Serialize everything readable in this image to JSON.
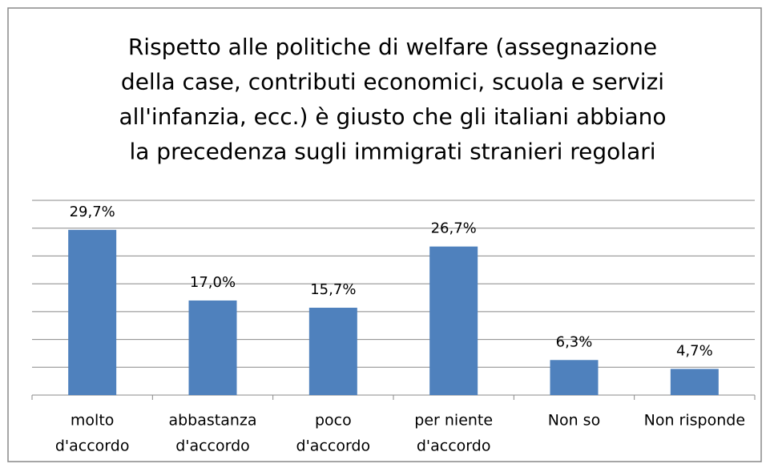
{
  "chart_data": {
    "type": "bar",
    "title": [
      "Rispetto alle politiche di welfare (assegnazione",
      "della case, contributi economici, scuola e servizi",
      "all'infanzia, ecc.) è giusto che gli italiani abbiano",
      "la precedenza sugli immigrati stranieri regolari"
    ],
    "categories": [
      [
        "molto",
        "d'accordo"
      ],
      [
        "abbastanza",
        "d'accordo"
      ],
      [
        "poco",
        "d'accordo"
      ],
      [
        "per niente",
        "d'accordo"
      ],
      [
        "Non so"
      ],
      [
        "Non risponde"
      ]
    ],
    "values": [
      29.7,
      17.0,
      15.7,
      26.7,
      6.3,
      4.7
    ],
    "value_labels": [
      "29,7%",
      "17,0%",
      "15,7%",
      "26,7%",
      "6,3%",
      "4,7%"
    ],
    "color": "#4f81bd",
    "ylim": [
      0,
      35
    ],
    "yticks": [
      0,
      5,
      10,
      15,
      20,
      25,
      30,
      35
    ],
    "grid": true
  }
}
